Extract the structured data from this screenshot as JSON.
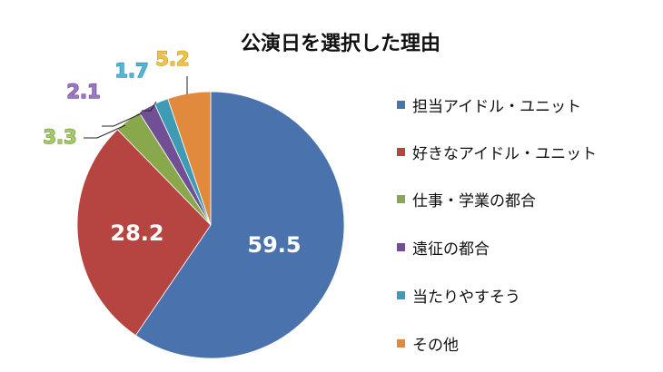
{
  "chart_data": {
    "type": "pie",
    "title": "公演日を選択した理由",
    "unit": "%",
    "categories": [
      "担当アイドル・ユニット",
      "好きなアイドル・ユニット",
      "仕事・学業の都合",
      "遠征の都合",
      "当たりやすそう",
      "その他"
    ],
    "values": [
      59.5,
      28.2,
      3.3,
      2.1,
      1.7,
      5.2
    ],
    "colors": [
      "#4a72ac",
      "#b64542",
      "#89a84b",
      "#704f94",
      "#3d9bb3",
      "#e18a3e"
    ],
    "data_labels": [
      "59.5",
      "28.2",
      "3.3",
      "2.1",
      "1.7",
      "5.2"
    ],
    "start_angle": "12 o'clock, clockwise",
    "legend_position": "right"
  },
  "title": "公演日を選択した理由",
  "legend": {
    "items": [
      {
        "label": "担当アイドル・ユニット",
        "color": "#4a72ac"
      },
      {
        "label": "好きなアイドル・ユニット",
        "color": "#b64542"
      },
      {
        "label": "仕事・学業の都合",
        "color": "#89a84b"
      },
      {
        "label": "遠征の都合",
        "color": "#704f94"
      },
      {
        "label": "当たりやすそう",
        "color": "#3d9bb3"
      },
      {
        "label": "その他",
        "color": "#e18a3e"
      }
    ]
  }
}
